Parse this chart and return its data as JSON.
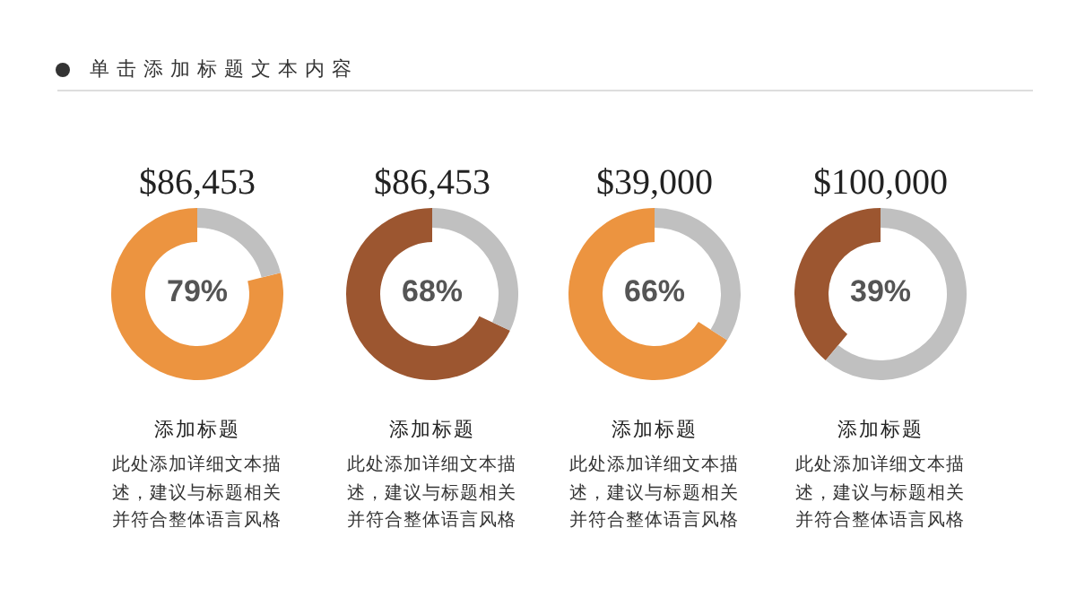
{
  "chart_data": [
    {
      "type": "other",
      "title": "单击添加标题文本内容"
    },
    {
      "type": "donut",
      "title": "$86,453",
      "categories": [
        null,
        null
      ],
      "values": [
        79,
        21
      ],
      "colors": [
        "#ec9440",
        "#c0c0c0"
      ],
      "value_labels": [
        "79%",
        null
      ],
      "annotations": [
        "添加标题",
        "此处添加详细文本描述，建议与标题相关并符合整体语言风格"
      ]
    },
    {
      "type": "donut",
      "title": "$86,453",
      "categories": [
        null,
        null
      ],
      "values": [
        68,
        32
      ],
      "colors": [
        "#9c5630",
        "#c0c0c0"
      ],
      "value_labels": [
        "68%",
        null
      ],
      "annotations": [
        "添加标题",
        "此处添加详细文本描述，建议与标题相关并符合整体语言风格"
      ]
    },
    {
      "type": "donut",
      "title": "$39,000",
      "categories": [
        null,
        null
      ],
      "values": [
        66,
        34
      ],
      "colors": [
        "#ec9440",
        "#c0c0c0"
      ],
      "value_labels": [
        "66%",
        null
      ],
      "annotations": [
        "添加标题",
        "此处添加详细文本描述，建议与标题相关并符合整体语言风格"
      ]
    },
    {
      "type": "donut",
      "title": "$100,000",
      "categories": [
        null,
        null
      ],
      "values": [
        39,
        61
      ],
      "colors": [
        "#9c5630",
        "#c0c0c0"
      ],
      "value_labels": [
        "39%",
        null
      ],
      "annotations": [
        "添加标题",
        "此处添加详细文本描述，建议与标题相关并符合整体语言风格"
      ]
    }
  ]
}
